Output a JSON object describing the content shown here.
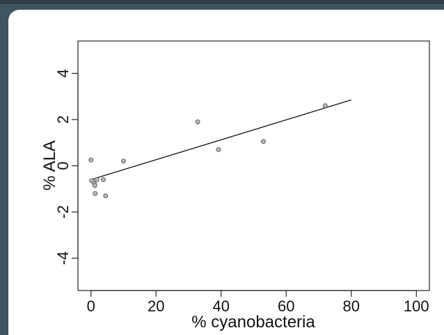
{
  "chart_data": {
    "type": "scatter",
    "xlabel": "% cyanobacteria",
    "ylabel": "% ALA",
    "xlim": [
      -4,
      104
    ],
    "ylim": [
      -5.4,
      5.4
    ],
    "x_ticks": [
      0,
      20,
      40,
      60,
      80,
      100
    ],
    "y_ticks": [
      -4,
      -2,
      0,
      2,
      4
    ],
    "grid": false,
    "points": [
      {
        "x": 0.0,
        "y": 0.25
      },
      {
        "x": 0.2,
        "y": -0.65
      },
      {
        "x": 1.0,
        "y": -0.75
      },
      {
        "x": 1.2,
        "y": -0.85
      },
      {
        "x": 1.3,
        "y": -1.2
      },
      {
        "x": 1.8,
        "y": -0.6
      },
      {
        "x": 3.8,
        "y": -0.6
      },
      {
        "x": 4.5,
        "y": -1.3
      },
      {
        "x": 10.0,
        "y": 0.2
      },
      {
        "x": 32.8,
        "y": 1.9
      },
      {
        "x": 39.2,
        "y": 0.7
      },
      {
        "x": 53.0,
        "y": 1.05
      },
      {
        "x": 72.0,
        "y": 2.6
      }
    ],
    "fit_line": {
      "x": [
        0,
        80
      ],
      "y": [
        -0.6,
        2.85
      ]
    },
    "point_color": "#b8b8b8",
    "line_color": "#111111"
  }
}
